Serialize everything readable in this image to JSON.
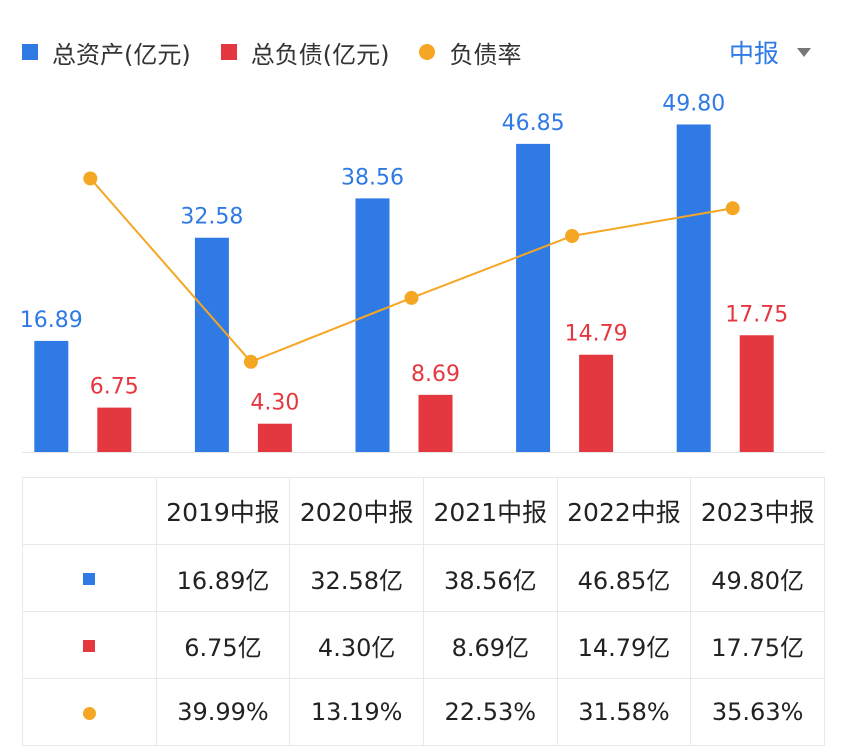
{
  "legend": {
    "assets_label": "总资产(亿元)",
    "liabilities_label": "总负债(亿元)",
    "ratio_label": "负债率"
  },
  "period_select": {
    "value": "中报"
  },
  "colors": {
    "assets": "#2f7ae5",
    "liabilities": "#e5373f",
    "ratio": "#f5a623",
    "axis": "#e6e6e6"
  },
  "chart_data": {
    "type": "bar",
    "categories": [
      "2019中报",
      "2020中报",
      "2021中报",
      "2022中报",
      "2023中报"
    ],
    "series": [
      {
        "name": "总资产(亿元)",
        "type": "bar",
        "values": [
          16.89,
          32.58,
          38.56,
          46.85,
          49.8
        ],
        "labels": [
          "16.89",
          "32.58",
          "38.56",
          "46.85",
          "49.80"
        ]
      },
      {
        "name": "总负债(亿元)",
        "type": "bar",
        "values": [
          6.75,
          4.3,
          8.69,
          14.79,
          17.75
        ],
        "labels": [
          "6.75",
          "4.30",
          "8.69",
          "14.79",
          "17.75"
        ]
      },
      {
        "name": "负债率",
        "type": "line",
        "values": [
          39.99,
          13.19,
          22.53,
          31.58,
          35.63
        ]
      }
    ],
    "ylim": [
      0,
      52
    ],
    "ratio_ylim": [
      0,
      50
    ],
    "grid": false,
    "legend_position": "top-left"
  },
  "table": {
    "headers": [
      "2019中报",
      "2020中报",
      "2021中报",
      "2022中报",
      "2023中报"
    ],
    "rows": [
      {
        "key": "assets",
        "cells": [
          "16.89亿",
          "32.58亿",
          "38.56亿",
          "46.85亿",
          "49.80亿"
        ]
      },
      {
        "key": "liabilities",
        "cells": [
          "6.75亿",
          "4.30亿",
          "8.69亿",
          "14.79亿",
          "17.75亿"
        ]
      },
      {
        "key": "ratio",
        "cells": [
          "39.99%",
          "13.19%",
          "22.53%",
          "31.58%",
          "35.63%"
        ]
      }
    ]
  }
}
